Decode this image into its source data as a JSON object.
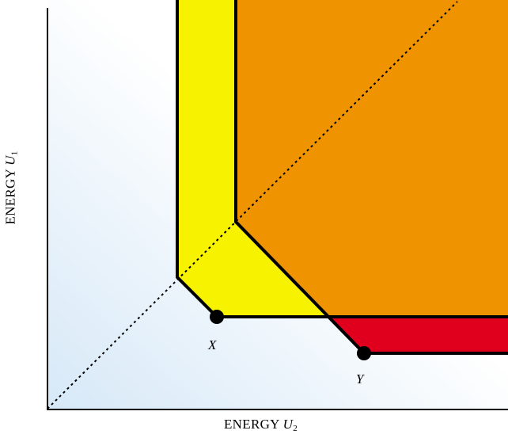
{
  "axes": {
    "x_title": {
      "prefix": "ENERGY ",
      "variable": "U",
      "subscript": "2"
    },
    "y_title": {
      "prefix": "ENERGY ",
      "variable": "U",
      "subscript": "1"
    }
  },
  "points": [
    {
      "id": "X",
      "label": "X"
    },
    {
      "id": "Y",
      "label": "Y"
    }
  ],
  "colors": {
    "background_gradient_start": "#d6e8f7",
    "background_gradient_end": "#ffffff",
    "yellow_region": "#f7f200",
    "orange_region": "#ef9400",
    "red_region": "#e0001e",
    "outline": "#000000"
  }
}
